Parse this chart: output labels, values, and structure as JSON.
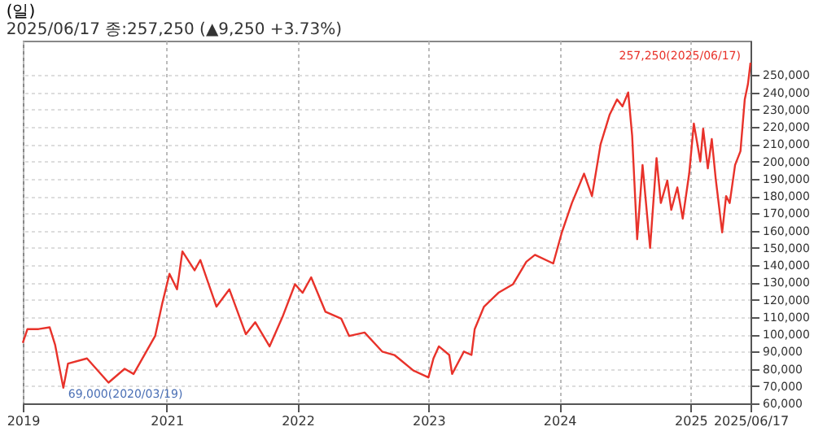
{
  "chart_data": {
    "type": "line",
    "title": "(일)",
    "subtitle": "2025/06/17 종:257,250 (▲9,250 +3.73%)",
    "x": [
      "2019-11-27",
      "2019-12-10",
      "2020-01-10",
      "2020-02-10",
      "2020-02-25",
      "2020-03-19",
      "2020-04-01",
      "2020-05-24",
      "2020-07-23",
      "2020-09-06",
      "2020-10-01",
      "2020-11-30",
      "2020-12-20",
      "2021-01-09",
      "2021-01-30",
      "2021-02-14",
      "2021-03-20",
      "2021-04-05",
      "2021-05-20",
      "2021-06-25",
      "2021-08-10",
      "2021-09-05",
      "2021-10-15",
      "2021-11-20",
      "2021-12-25",
      "2022-01-15",
      "2022-02-08",
      "2022-03-20",
      "2022-05-03",
      "2022-05-25",
      "2022-07-07",
      "2022-08-25",
      "2022-09-28",
      "2022-10-10",
      "2022-11-20",
      "2023-01-01",
      "2023-01-15",
      "2023-01-30",
      "2023-02-28",
      "2023-03-08",
      "2023-04-10",
      "2023-05-01",
      "2023-05-10",
      "2023-06-05",
      "2023-07-15",
      "2023-08-25",
      "2023-10-01",
      "2023-10-25",
      "2023-12-15",
      "2024-01-08",
      "2024-02-05",
      "2024-03-10",
      "2024-04-01",
      "2024-04-25",
      "2024-05-20",
      "2024-06-10",
      "2024-06-25",
      "2024-07-11",
      "2024-07-22",
      "2024-08-05",
      "2024-08-20",
      "2024-09-10",
      "2024-09-28",
      "2024-10-10",
      "2024-10-28",
      "2024-11-08",
      "2024-11-25",
      "2024-12-10",
      "2024-12-28",
      "2025-01-10",
      "2025-01-20",
      "2025-01-28",
      "2025-02-05",
      "2025-02-18",
      "2025-03-01",
      "2025-03-12",
      "2025-03-30",
      "2025-04-10",
      "2025-04-20",
      "2025-05-05",
      "2025-05-20",
      "2025-06-01",
      "2025-06-10",
      "2025-06-17"
    ],
    "series": [
      {
        "color": "#e8322a",
        "values": [
          95000,
          103000,
          103000,
          104000,
          94000,
          69000,
          83000,
          86000,
          72000,
          80000,
          77000,
          99000,
          118000,
          135000,
          126000,
          148000,
          137000,
          143000,
          116000,
          126000,
          100000,
          107000,
          93000,
          110000,
          129000,
          124000,
          133000,
          113000,
          109000,
          99000,
          101000,
          90000,
          88000,
          86000,
          79000,
          75000,
          86000,
          93000,
          88000,
          77000,
          90000,
          88000,
          103000,
          116000,
          124000,
          129000,
          142000,
          146000,
          141000,
          159000,
          176000,
          193000,
          180000,
          210000,
          227000,
          236000,
          232000,
          240000,
          215000,
          155000,
          198000,
          150000,
          202000,
          176000,
          189000,
          172000,
          185000,
          167000,
          193000,
          222000,
          210000,
          200000,
          219000,
          196000,
          213000,
          190000,
          159000,
          180000,
          176000,
          198000,
          206000,
          236000,
          245000,
          257250
        ]
      }
    ],
    "xlim": [
      "2019-11-27",
      "2025-06-17"
    ],
    "xticks": [
      {
        "value": "2019-11-27",
        "label": "2019"
      },
      {
        "value": "2021-01-01",
        "label": "2021"
      },
      {
        "value": "2022-01-01",
        "label": "2022"
      },
      {
        "value": "2023-01-01",
        "label": "2023"
      },
      {
        "value": "2024-01-01",
        "label": "2024"
      },
      {
        "value": "2025-01-01",
        "label": "2025"
      },
      {
        "value": "2025-06-17",
        "label": "2025/06/17"
      }
    ],
    "ylim": [
      60000,
      270000
    ],
    "yticks": [
      {
        "value": 60000,
        "label": "60,000"
      },
      {
        "value": 70000,
        "label": "70,000"
      },
      {
        "value": 80000,
        "label": "80,000"
      },
      {
        "value": 90000,
        "label": "90,000"
      },
      {
        "value": 100000,
        "label": "100,000"
      },
      {
        "value": 110000,
        "label": "110,000"
      },
      {
        "value": 120000,
        "label": "120,000"
      },
      {
        "value": 130000,
        "label": "130,000"
      },
      {
        "value": 140000,
        "label": "140,000"
      },
      {
        "value": 150000,
        "label": "150,000"
      },
      {
        "value": 160000,
        "label": "160,000"
      },
      {
        "value": 170000,
        "label": "170,000"
      },
      {
        "value": 180000,
        "label": "180,000"
      },
      {
        "value": 190000,
        "label": "190,000"
      },
      {
        "value": 200000,
        "label": "200,000"
      },
      {
        "value": 210000,
        "label": "210,000"
      },
      {
        "value": 220000,
        "label": "220,000"
      },
      {
        "value": 230000,
        "label": "230,000"
      },
      {
        "value": 240000,
        "label": "240,000"
      },
      {
        "value": 250000,
        "label": "250,000"
      }
    ],
    "annotations": [
      {
        "text": "69,000(2020/03/19)",
        "x": "2020-03-19",
        "y": 69000
      },
      {
        "text": "257,250(2025/06/17)",
        "x": "2025-06-17",
        "y": 257250
      }
    ],
    "grid": true,
    "legend": false,
    "line_style": "solid",
    "marker": "none"
  }
}
